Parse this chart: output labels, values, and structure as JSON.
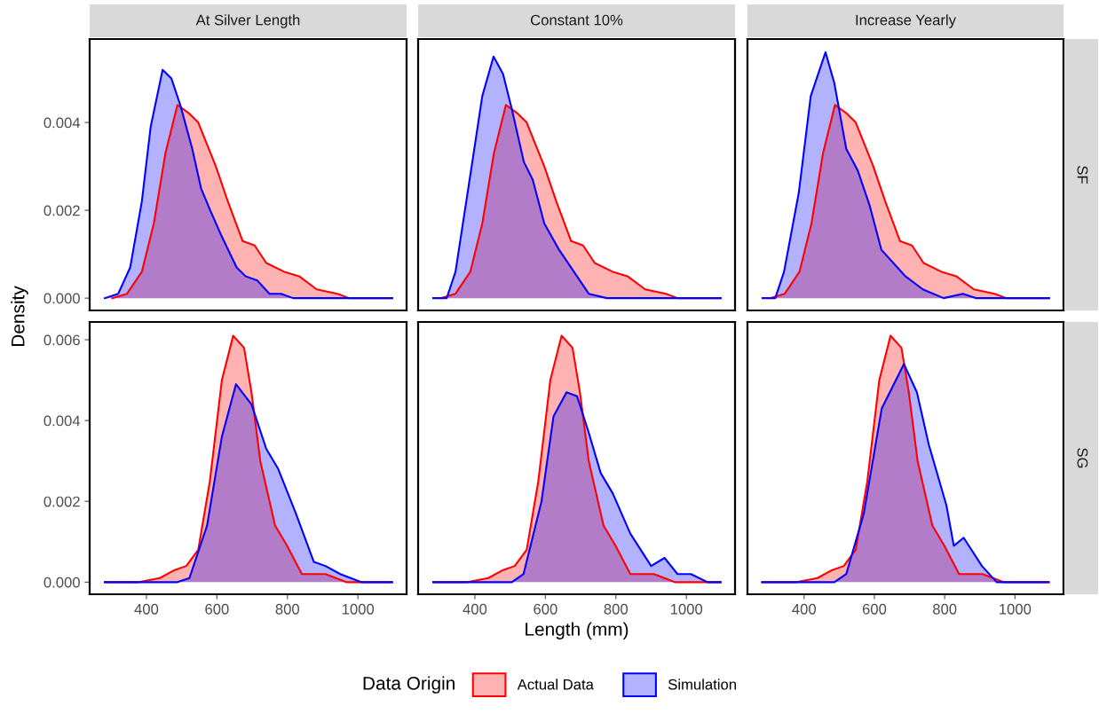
{
  "chart_data": [
    {
      "type": "area",
      "title": "At Silver Length",
      "legend_title": "Data Origin",
      "legend": "bottom",
      "xlim": [
        239,
        1138
      ],
      "ylim": [
        -0.00028,
        0.0059
      ],
      "yticks": [
        {
          "value": 0,
          "label": "0.000"
        },
        {
          "value": 0.002,
          "label": "0.002"
        },
        {
          "value": 0.004,
          "label": "0.004"
        }
      ],
      "tick_labels": "y",
      "series": [
        {
          "name": "Actual Data",
          "color": "#ff0000",
          "x": [
            303,
            345,
            387,
            421,
            454,
            488,
            522,
            547,
            572,
            597,
            631,
            673,
            707,
            740,
            791,
            833,
            883,
            942,
            975,
            1097
          ],
          "values": [
            0,
            0.0001,
            0.0006,
            0.0017,
            0.0033,
            0.0044,
            0.0042,
            0.004,
            0.0035,
            0.003,
            0.0022,
            0.0013,
            0.0012,
            0.0008,
            0.0006,
            0.0005,
            0.0002,
            0.0001,
            0,
            0
          ]
        },
        {
          "name": "Simulation",
          "color": "#0000ff",
          "x": [
            282,
            320,
            354,
            387,
            412,
            446,
            471,
            496,
            530,
            555,
            581,
            614,
            656,
            681,
            715,
            749,
            782,
            816,
            1097
          ],
          "values": [
            0,
            0.0001,
            0.0007,
            0.0022,
            0.0039,
            0.0052,
            0.005,
            0.0044,
            0.0034,
            0.0025,
            0.002,
            0.0014,
            0.0007,
            0.0005,
            0.0004,
            0.0001,
            0.0001,
            0,
            0
          ]
        }
      ]
    },
    {
      "type": "area",
      "title": "Constant 10%",
      "xlim": [
        239,
        1138
      ],
      "ylim": [
        -0.00028,
        0.0059
      ],
      "tick_labels": false,
      "series": [
        {
          "color": "#ff0000",
          "x": [
            303,
            345,
            387,
            421,
            454,
            488,
            522,
            547,
            572,
            597,
            631,
            673,
            707,
            740,
            791,
            833,
            883,
            942,
            975,
            1097
          ],
          "values": [
            0,
            0.0001,
            0.0006,
            0.0017,
            0.0033,
            0.0044,
            0.0042,
            0.004,
            0.0035,
            0.003,
            0.0022,
            0.0013,
            0.0012,
            0.0008,
            0.0006,
            0.0005,
            0.0002,
            0.0001,
            0,
            0
          ]
        },
        {
          "color": "#0000ff",
          "x": [
            282,
            320,
            345,
            387,
            421,
            453,
            480,
            505,
            539,
            564,
            597,
            639,
            681,
            723,
            774,
            816,
            1097
          ],
          "values": [
            0,
            0,
            0.0006,
            0.0028,
            0.0046,
            0.0055,
            0.0051,
            0.0043,
            0.0031,
            0.0027,
            0.0017,
            0.0011,
            0.0006,
            0.0001,
            0,
            0,
            0
          ]
        }
      ]
    },
    {
      "type": "area",
      "title": "Increase Yearly",
      "y2label": "SF",
      "xlim": [
        239,
        1138
      ],
      "ylim": [
        -0.00028,
        0.0059
      ],
      "tick_labels": false,
      "series": [
        {
          "color": "#ff0000",
          "x": [
            303,
            345,
            387,
            421,
            454,
            488,
            522,
            547,
            572,
            597,
            631,
            673,
            707,
            740,
            791,
            833,
            883,
            942,
            975,
            1097
          ],
          "values": [
            0,
            0.0001,
            0.0006,
            0.0017,
            0.0033,
            0.0044,
            0.0042,
            0.004,
            0.0035,
            0.003,
            0.0022,
            0.0013,
            0.0012,
            0.0008,
            0.0006,
            0.0005,
            0.0002,
            0.0001,
            0,
            0
          ]
        },
        {
          "color": "#0000ff",
          "x": [
            282,
            318,
            343,
            385,
            419,
            461,
            486,
            520,
            553,
            587,
            620,
            688,
            738,
            797,
            852,
            890,
            1097
          ],
          "values": [
            0,
            0,
            0.0006,
            0.0024,
            0.0046,
            0.0056,
            0.0049,
            0.0034,
            0.0029,
            0.0021,
            0.0011,
            0.0005,
            0.0002,
            0,
            0.0001,
            0,
            0
          ]
        }
      ]
    },
    {
      "type": "area",
      "ylabel": "Density",
      "xlim": [
        239,
        1138
      ],
      "ylim": [
        -0.0003,
        0.00644
      ],
      "xticks": [
        400,
        600,
        800,
        1000
      ],
      "yticks": [
        {
          "value": 0,
          "label": "0.000"
        },
        {
          "value": 0.002,
          "label": "0.002"
        },
        {
          "value": 0.004,
          "label": "0.004"
        },
        {
          "value": 0.006,
          "label": "0.006"
        }
      ],
      "series": [
        {
          "color": "#ff0000",
          "x": [
            282,
            379,
            438,
            480,
            513,
            547,
            580,
            614,
            646,
            677,
            698,
            723,
            765,
            799,
            841,
            908,
            967,
            1034,
            1097
          ],
          "values": [
            0,
            0,
            0.0001,
            0.0003,
            0.0004,
            0.0008,
            0.0025,
            0.005,
            0.0061,
            0.0058,
            0.0047,
            0.003,
            0.0014,
            0.0009,
            0.0002,
            0.0002,
            0,
            0,
            0
          ]
        },
        {
          "color": "#0000ff",
          "x": [
            282,
            488,
            522,
            572,
            614,
            654,
            698,
            740,
            774,
            824,
            875,
            908,
            950,
            1009,
            1060,
            1097
          ],
          "values": [
            0,
            0,
            0.0001,
            0.0014,
            0.0036,
            0.0049,
            0.0044,
            0.0033,
            0.0028,
            0.0017,
            0.0005,
            0.0004,
            0.0002,
            0,
            0,
            0
          ]
        }
      ]
    },
    {
      "type": "area",
      "xlabel": "Length (mm)",
      "xlim": [
        239,
        1138
      ],
      "ylim": [
        -0.0003,
        0.00644
      ],
      "xticks": [
        400,
        600,
        800,
        1000
      ],
      "tick_labels": "x",
      "series": [
        {
          "color": "#ff0000",
          "x": [
            282,
            379,
            438,
            480,
            513,
            547,
            580,
            614,
            646,
            677,
            698,
            723,
            765,
            799,
            841,
            908,
            967,
            1034,
            1097
          ],
          "values": [
            0,
            0,
            0.0001,
            0.0003,
            0.0004,
            0.0008,
            0.0025,
            0.005,
            0.0061,
            0.0058,
            0.0047,
            0.003,
            0.0014,
            0.0009,
            0.0002,
            0.0002,
            0,
            0,
            0
          ]
        },
        {
          "color": "#0000ff",
          "x": [
            282,
            505,
            538,
            589,
            623,
            660,
            690,
            723,
            757,
            791,
            841,
            900,
            938,
            975,
            1013,
            1060,
            1097
          ],
          "values": [
            0,
            0,
            0.0002,
            0.002,
            0.0041,
            0.0047,
            0.0046,
            0.0037,
            0.0027,
            0.0022,
            0.0012,
            0.0004,
            0.0006,
            0.0002,
            0.0002,
            0,
            0
          ]
        }
      ]
    },
    {
      "type": "area",
      "y2label": "SG",
      "xlim": [
        239,
        1138
      ],
      "ylim": [
        -0.0003,
        0.00644
      ],
      "xticks": [
        400,
        600,
        800,
        1000
      ],
      "tick_labels": "x",
      "series": [
        {
          "color": "#ff0000",
          "x": [
            282,
            379,
            438,
            480,
            513,
            547,
            580,
            614,
            646,
            677,
            698,
            723,
            765,
            799,
            841,
            908,
            967,
            1034,
            1097
          ],
          "values": [
            0,
            0,
            0.0001,
            0.0003,
            0.0004,
            0.0008,
            0.0025,
            0.005,
            0.0061,
            0.0058,
            0.0047,
            0.003,
            0.0014,
            0.0009,
            0.0002,
            0.0002,
            0,
            0,
            0
          ]
        },
        {
          "color": "#0000ff",
          "x": [
            280,
            486,
            520,
            570,
            621,
            684,
            721,
            755,
            805,
            826,
            854,
            906,
            948,
            990,
            1032,
            1095
          ],
          "values": [
            0,
            0,
            0.0002,
            0.0017,
            0.0043,
            0.0054,
            0.0047,
            0.0034,
            0.0019,
            0.0009,
            0.0011,
            0.0004,
            0,
            0,
            0,
            0
          ]
        }
      ]
    }
  ]
}
